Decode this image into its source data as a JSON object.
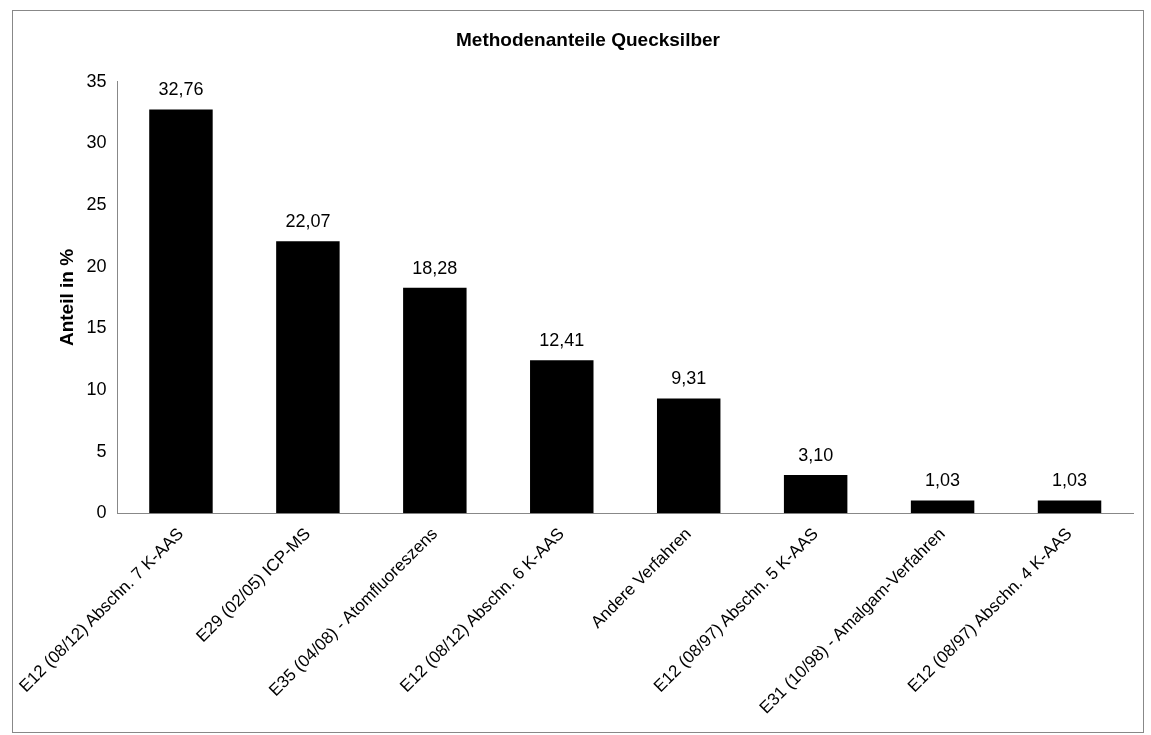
{
  "chart_data": {
    "type": "bar",
    "title": "Methodenanteile Quecksilber",
    "ylabel": "Anteil in %",
    "categories": [
      "E12 (08/12) Abschn. 7 K-AAS",
      "E29 (02/05) ICP-MS",
      "E35 (04/08) - Atomfluoreszens",
      "E12 (08/12) Abschn. 6 K-AAS",
      "Andere Verfahren",
      "E12 (08/97) Abschn. 5 K-AAS",
      "E31 (10/98) - Amalgam-Verfahren",
      "E12 (08/97) Abschn. 4 K-AAS"
    ],
    "values": [
      32.76,
      22.07,
      18.28,
      12.41,
      9.31,
      3.1,
      1.03,
      1.03
    ],
    "value_labels": [
      "32,76",
      "22,07",
      "18,28",
      "12,41",
      "9,31",
      "3,10",
      "1,03",
      "1,03"
    ],
    "color": "#000000",
    "ylim": [
      0,
      35
    ],
    "yticks": [
      0,
      5,
      10,
      15,
      20,
      25,
      30,
      35
    ],
    "grid": false,
    "legend": false
  }
}
